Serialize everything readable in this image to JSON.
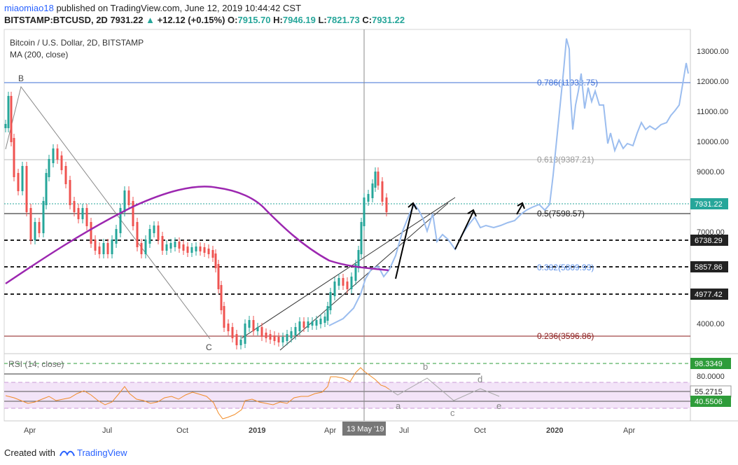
{
  "header": {
    "user": "miaomiao18",
    "published_text": "published on TradingView.com, June 12, 2019 10:44:42 CST",
    "symbol": "BITSTAMP:BTCUSD, 2D",
    "last": "7931.22",
    "change": "+12.12 (+0.15%)",
    "o_label": "O:",
    "o": "7915.70",
    "h_label": "H:",
    "h": "7946.19",
    "l_label": "L:",
    "l": "7821.73",
    "c_label": "C:",
    "c": "7931.22"
  },
  "chart_data": {
    "type": "line",
    "title": "Bitcoin / U.S. Dollar, 2D, BITSTAMP",
    "subtitle": "MA (200, close)",
    "y_ticks": [
      "13000.00",
      "12000.00",
      "11000.00",
      "10000.00",
      "9000.00",
      "7000.00",
      "4000.00"
    ],
    "x_ticks": [
      "Apr",
      "Jul",
      "Oct",
      "2019",
      "Apr",
      "Jul",
      "Oct",
      "2020",
      "Apr"
    ],
    "x_highlight": "13 May '19",
    "price_tags": [
      {
        "label": "7931.22",
        "color": "#26a69a"
      },
      {
        "label": "6738.29",
        "color": "#222222"
      },
      {
        "label": "5857.86",
        "color": "#222222"
      },
      {
        "label": "4977.42",
        "color": "#222222"
      }
    ],
    "fib_levels": [
      {
        "label": "0.786(11933.75)",
        "price": 11933.75,
        "color": "#3d6fd6"
      },
      {
        "label": "0.618(9387.21)",
        "price": 9387.21,
        "color": "#999999"
      },
      {
        "label": "0.5(7598.57)",
        "price": 7598.57,
        "color": "#222222"
      },
      {
        "label": "0.382(5809.93)",
        "price": 5809.93,
        "color": "#5b8fe8"
      },
      {
        "label": "0.236(3596.86)",
        "price": 3596.86,
        "color": "#8b1a1a"
      }
    ],
    "dashed_levels": [
      6738.29,
      5857.86,
      4977.42
    ],
    "wave_labels_price": [
      "B",
      "C"
    ],
    "rsi": {
      "label": "RSI (14, close)",
      "ticks": [
        "98.3349",
        "80.0000",
        "55.2715",
        "40.5506"
      ],
      "wave_labels": [
        "a",
        "b",
        "c",
        "d",
        "e"
      ]
    },
    "series": [
      {
        "name": "MA (200, close)",
        "color": "#9c27b0"
      }
    ]
  },
  "footer": {
    "created_with": "Created with",
    "brand": "TradingView"
  }
}
